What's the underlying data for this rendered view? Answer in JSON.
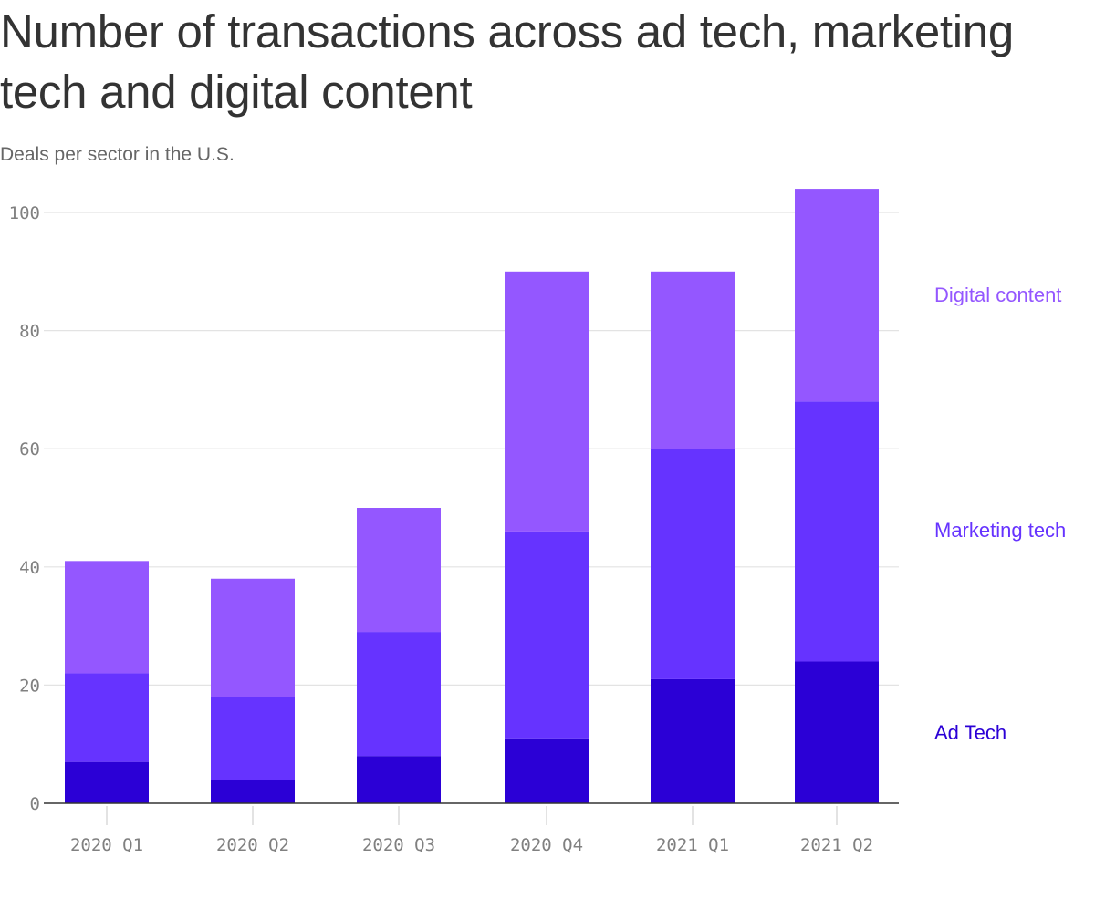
{
  "title": "Number of transactions across ad tech, marketing tech and digital content",
  "subtitle": "Deals per sector in the U.S.",
  "chart_data": {
    "type": "bar",
    "stacked": true,
    "title": "Number of transactions across ad tech, marketing tech and digital content",
    "subtitle": "Deals per sector in the U.S.",
    "xlabel": "",
    "ylabel": "",
    "ylim": [
      0,
      100
    ],
    "yticks": [
      0,
      20,
      40,
      60,
      80,
      100
    ],
    "ytick_labels": [
      "0",
      "20",
      "40",
      "60",
      "80",
      "100"
    ],
    "grid": true,
    "legend_placement": "right",
    "categories": [
      "2020 Q1",
      "2020 Q2",
      "2020 Q3",
      "2020 Q4",
      "2021 Q1",
      "2021 Q2"
    ],
    "series": [
      {
        "name": "Ad Tech",
        "color": "#2b00d6",
        "values": [
          7,
          4,
          8,
          11,
          21,
          24
        ]
      },
      {
        "name": "Marketing tech",
        "color": "#6633ff",
        "values": [
          15,
          14,
          21,
          35,
          39,
          44
        ]
      },
      {
        "name": "Digital content",
        "color": "#9457ff",
        "values": [
          19,
          20,
          21,
          44,
          30,
          36
        ]
      }
    ]
  }
}
